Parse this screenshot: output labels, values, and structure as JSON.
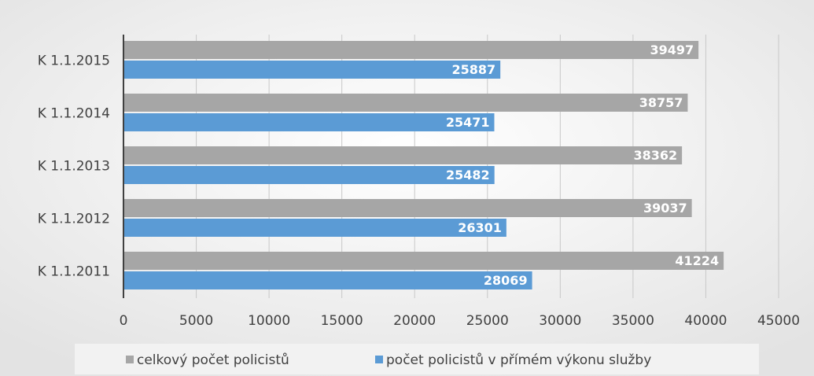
{
  "chart_data": {
    "type": "bar",
    "orientation": "horizontal",
    "categories": [
      "K 1.1.2011",
      "K 1.1.2012",
      "K 1.1.2013",
      "K 1.1.2014",
      "K 1.1.2015"
    ],
    "series": [
      {
        "name": "celkový počet policistů",
        "color": "#a6a6a6",
        "values": [
          41224,
          39037,
          38362,
          38757,
          39497
        ]
      },
      {
        "name": "počet policistů v přímém výkonu služby",
        "color": "#5b9bd5",
        "values": [
          28069,
          26301,
          25482,
          25471,
          25887
        ]
      }
    ],
    "xlim": [
      0,
      45000
    ],
    "xticks": [
      0,
      5000,
      10000,
      15000,
      20000,
      25000,
      30000,
      35000,
      40000,
      45000
    ],
    "grid": true,
    "legend": "bottom"
  }
}
